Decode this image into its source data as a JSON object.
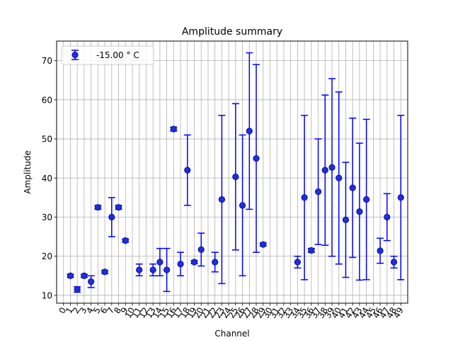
{
  "chart_data": {
    "type": "scatter",
    "title": "Amplitude summary",
    "xlabel": "Channel",
    "ylabel": "Amplitude",
    "xlim": [
      -1,
      50
    ],
    "ylim": [
      8,
      75
    ],
    "yticks": [
      10,
      20,
      30,
      40,
      50,
      60,
      70
    ],
    "xtick_rotation": 60,
    "grid": true,
    "legend_placement": "upper-left",
    "marker_color": "#1f2fd6",
    "errorbar_color": "#0000ff",
    "series": [
      {
        "name": "-15.00 ° C",
        "points": [
          {
            "x": 1,
            "y": 15.0,
            "ylo": 14.6,
            "yhi": 15.4
          },
          {
            "x": 2,
            "y": 11.5,
            "ylo": 10.8,
            "yhi": 12.2
          },
          {
            "x": 3,
            "y": 15.0,
            "ylo": 14.6,
            "yhi": 15.4
          },
          {
            "x": 4,
            "y": 13.5,
            "ylo": 12.0,
            "yhi": 15.0
          },
          {
            "x": 5,
            "y": 32.5,
            "ylo": 32.0,
            "yhi": 33.0
          },
          {
            "x": 6,
            "y": 16.0,
            "ylo": 15.6,
            "yhi": 16.4
          },
          {
            "x": 7,
            "y": 30.0,
            "ylo": 25.0,
            "yhi": 35.0
          },
          {
            "x": 8,
            "y": 32.5,
            "ylo": 32.0,
            "yhi": 33.0
          },
          {
            "x": 9,
            "y": 24.0,
            "ylo": 23.6,
            "yhi": 24.4
          },
          {
            "x": 11,
            "y": 16.5,
            "ylo": 15.0,
            "yhi": 18.0
          },
          {
            "x": 13,
            "y": 16.5,
            "ylo": 15.0,
            "yhi": 18.0
          },
          {
            "x": 14,
            "y": 18.5,
            "ylo": 15.0,
            "yhi": 22.0
          },
          {
            "x": 15,
            "y": 16.5,
            "ylo": 11.0,
            "yhi": 22.0
          },
          {
            "x": 16,
            "y": 52.5,
            "ylo": 52.0,
            "yhi": 53.0
          },
          {
            "x": 17,
            "y": 18.0,
            "ylo": 15.0,
            "yhi": 21.0
          },
          {
            "x": 18,
            "y": 42.0,
            "ylo": 33.0,
            "yhi": 51.0
          },
          {
            "x": 19,
            "y": 18.5,
            "ylo": 18.1,
            "yhi": 18.9
          },
          {
            "x": 20,
            "y": 21.7,
            "ylo": 17.5,
            "yhi": 25.9
          },
          {
            "x": 22,
            "y": 18.5,
            "ylo": 16.0,
            "yhi": 21.0
          },
          {
            "x": 23,
            "y": 34.5,
            "ylo": 13.0,
            "yhi": 56.0
          },
          {
            "x": 25,
            "y": 40.3,
            "ylo": 21.6,
            "yhi": 59.0
          },
          {
            "x": 26,
            "y": 33.0,
            "ylo": 15.0,
            "yhi": 51.0
          },
          {
            "x": 27,
            "y": 52.0,
            "ylo": 32.0,
            "yhi": 72.0
          },
          {
            "x": 28,
            "y": 45.0,
            "ylo": 21.0,
            "yhi": 69.0
          },
          {
            "x": 29,
            "y": 23.0,
            "ylo": 22.6,
            "yhi": 23.4
          },
          {
            "x": 34,
            "y": 18.5,
            "ylo": 17.0,
            "yhi": 20.0
          },
          {
            "x": 35,
            "y": 35.0,
            "ylo": 14.0,
            "yhi": 56.0
          },
          {
            "x": 36,
            "y": 21.5,
            "ylo": 21.0,
            "yhi": 22.0
          },
          {
            "x": 37,
            "y": 36.5,
            "ylo": 23.0,
            "yhi": 50.0
          },
          {
            "x": 38,
            "y": 42.0,
            "ylo": 22.8,
            "yhi": 61.2
          },
          {
            "x": 39,
            "y": 42.7,
            "ylo": 20.0,
            "yhi": 65.4
          },
          {
            "x": 40,
            "y": 40.0,
            "ylo": 18.0,
            "yhi": 62.0
          },
          {
            "x": 41,
            "y": 29.3,
            "ylo": 14.6,
            "yhi": 44.0
          },
          {
            "x": 42,
            "y": 37.5,
            "ylo": 19.7,
            "yhi": 55.3
          },
          {
            "x": 43,
            "y": 31.4,
            "ylo": 13.9,
            "yhi": 48.9
          },
          {
            "x": 44,
            "y": 34.5,
            "ylo": 14.0,
            "yhi": 55.0
          },
          {
            "x": 46,
            "y": 21.4,
            "ylo": 18.2,
            "yhi": 24.6
          },
          {
            "x": 47,
            "y": 30.0,
            "ylo": 24.0,
            "yhi": 36.0
          },
          {
            "x": 48,
            "y": 18.5,
            "ylo": 17.0,
            "yhi": 20.0
          },
          {
            "x": 49,
            "y": 35.0,
            "ylo": 14.0,
            "yhi": 56.0
          }
        ]
      }
    ]
  }
}
